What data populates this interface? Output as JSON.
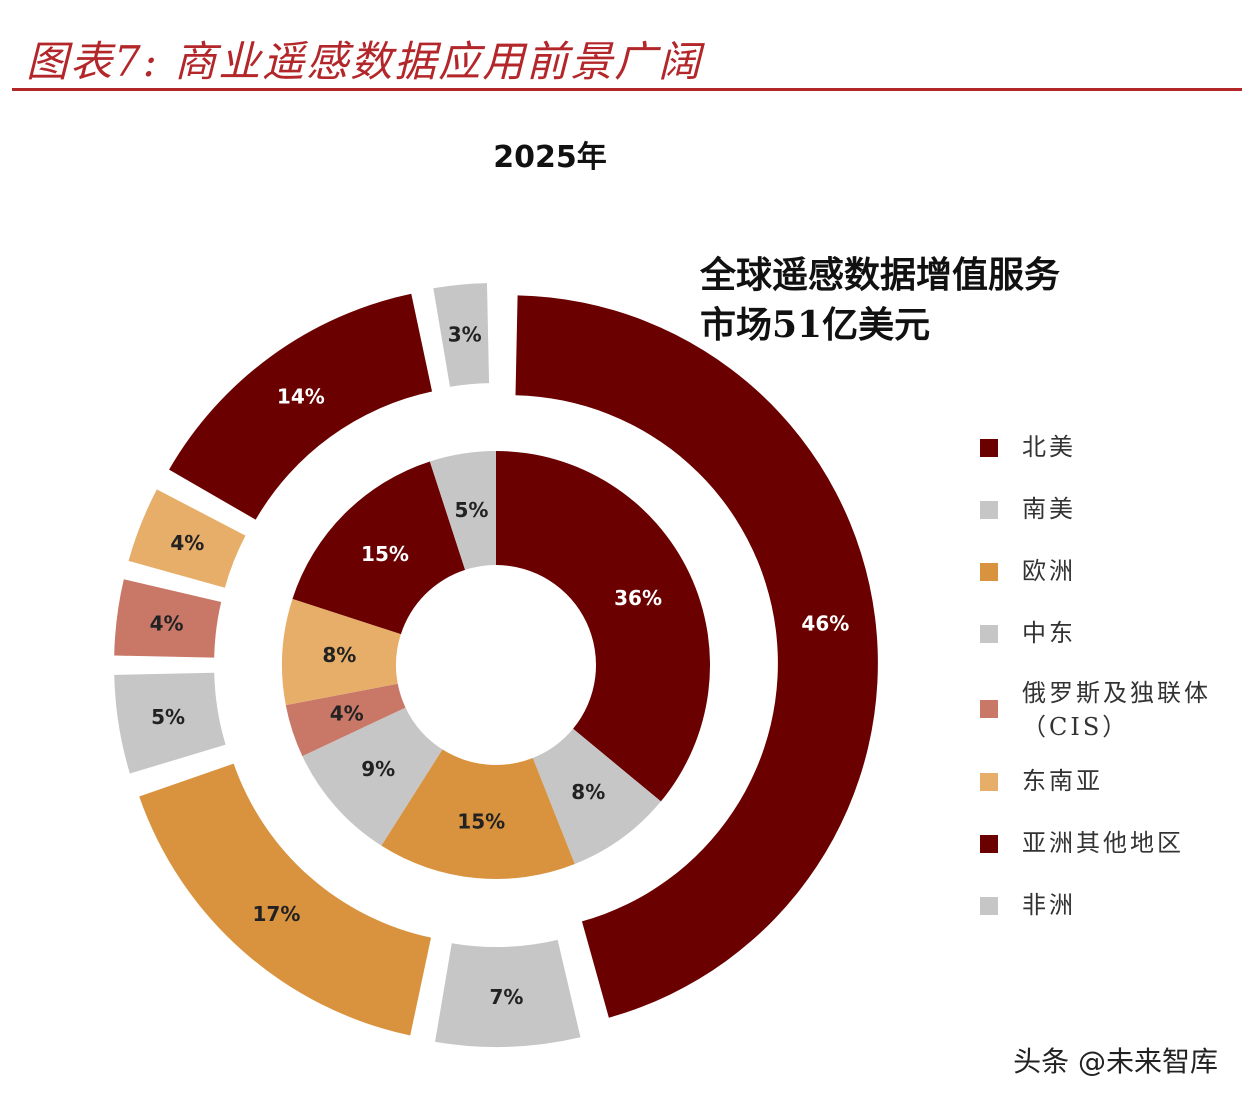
{
  "header": {
    "figure_title": "图表7: 商业遥感数据应用前景广阔"
  },
  "watermark": "头条 @未来智库",
  "colors": {
    "dark_red": "#6b0000",
    "gray": "#c6c6c6",
    "orange": "#d9933f",
    "tan": "#e7ae6a",
    "rose": "#c97868",
    "title_red": "#b3262a"
  },
  "chart_data": {
    "type": "pie",
    "variant": "nested-donut",
    "title": "2025年",
    "annotation": [
      "全球遥感数据增值服务",
      "市场51亿美元"
    ],
    "legend": [
      {
        "label": "北美",
        "color": "#6b0000"
      },
      {
        "label": "南美",
        "color": "#c6c6c6"
      },
      {
        "label": "欧洲",
        "color": "#d9933f"
      },
      {
        "label": "中东",
        "color": "#c6c6c6"
      },
      {
        "label": "俄罗斯及独联体\n（CIS）",
        "color": "#c97868"
      },
      {
        "label": "东南亚",
        "color": "#e7ae6a"
      },
      {
        "label": "亚洲其他地区",
        "color": "#6b0000"
      },
      {
        "label": "非洲",
        "color": "#c6c6c6"
      }
    ],
    "legend_position": "right",
    "outer_ring": [
      {
        "region": "北美",
        "value": 46,
        "label": "46%",
        "color": "#6b0000"
      },
      {
        "region": "南美",
        "value": 7,
        "label": "7%",
        "color": "#c6c6c6"
      },
      {
        "region": "欧洲",
        "value": 17,
        "label": "17%",
        "color": "#d9933f"
      },
      {
        "region": "中东",
        "value": 5,
        "label": "5%",
        "color": "#c6c6c6"
      },
      {
        "region": "俄罗斯及独联体（CIS）",
        "value": 4,
        "label": "4%",
        "color": "#c97868"
      },
      {
        "region": "东南亚",
        "value": 4,
        "label": "4%",
        "color": "#e7ae6a"
      },
      {
        "region": "亚洲其他地区",
        "value": 14,
        "label": "14%",
        "color": "#6b0000"
      },
      {
        "region": "非洲",
        "value": 3,
        "label": "3%",
        "color": "#c6c6c6"
      }
    ],
    "inner_ring": [
      {
        "region": "北美",
        "value": 36,
        "label": "36%",
        "color": "#6b0000"
      },
      {
        "region": "南美",
        "value": 8,
        "label": "8%",
        "color": "#c6c6c6"
      },
      {
        "region": "欧洲",
        "value": 15,
        "label": "15%",
        "color": "#d9933f"
      },
      {
        "region": "中东",
        "value": 9,
        "label": "9%",
        "color": "#c6c6c6"
      },
      {
        "region": "俄罗斯及独联体（CIS）",
        "value": 4,
        "label": "4%",
        "color": "#c97868"
      },
      {
        "region": "东南亚",
        "value": 8,
        "label": "8%",
        "color": "#e7ae6a"
      },
      {
        "region": "亚洲其他地区",
        "value": 15,
        "label": "15%",
        "color": "#6b0000"
      },
      {
        "region": "非洲",
        "value": 5,
        "label": "5%",
        "color": "#c6c6c6"
      }
    ]
  }
}
